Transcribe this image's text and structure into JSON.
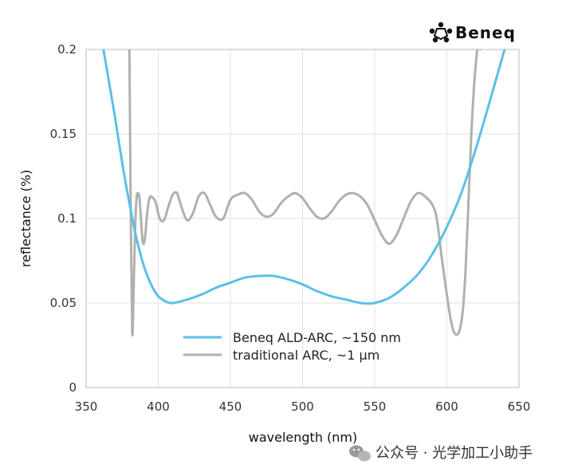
{
  "logo": {
    "text": "Beneq"
  },
  "watermark": {
    "text": "公众号 · 光学加工小助手"
  },
  "chart_data": {
    "type": "line",
    "xlabel": "wavelength (nm)",
    "ylabel": "reflectance (%)",
    "xlim": [
      350,
      650
    ],
    "ylim": [
      0,
      0.2
    ],
    "xticks": [
      350,
      400,
      450,
      500,
      550,
      600,
      650
    ],
    "yticks": [
      0,
      0.05,
      0.1,
      0.15,
      0.2
    ],
    "ytick_labels": [
      "0",
      "0.05",
      "0.1",
      "0.15",
      "0.2"
    ],
    "grid": true,
    "legend_position": "bottom-center",
    "series": [
      {
        "name": "Beneq ALD-ARC, ~150 nm",
        "color": "#5bc0e8",
        "x": [
          362,
          365,
          370,
          375,
          380,
          385,
          390,
          395,
          400,
          405,
          410,
          420,
          430,
          440,
          450,
          460,
          470,
          480,
          490,
          500,
          510,
          520,
          530,
          540,
          545,
          550,
          560,
          570,
          580,
          590,
          600,
          610,
          620,
          630,
          640
        ],
        "y": [
          0.2,
          0.185,
          0.16,
          0.133,
          0.109,
          0.088,
          0.072,
          0.061,
          0.054,
          0.051,
          0.05,
          0.052,
          0.055,
          0.059,
          0.062,
          0.065,
          0.066,
          0.066,
          0.064,
          0.061,
          0.057,
          0.054,
          0.052,
          0.05,
          0.0497,
          0.05,
          0.053,
          0.059,
          0.067,
          0.079,
          0.095,
          0.115,
          0.141,
          0.17,
          0.2
        ]
      },
      {
        "name": "traditional ARC, ~1 μm",
        "color": "#b0b0b0",
        "x": [
          380,
          381,
          382,
          383,
          384,
          385,
          386,
          387,
          388,
          389,
          390,
          391,
          392,
          393,
          394,
          395,
          398,
          401,
          404,
          407,
          410,
          413,
          416,
          420,
          424,
          428,
          432,
          436,
          440,
          445,
          450,
          455,
          460,
          465,
          470,
          475,
          480,
          485,
          490,
          495,
          500,
          505,
          510,
          515,
          520,
          525,
          530,
          535,
          540,
          545,
          550,
          555,
          560,
          565,
          570,
          575,
          580,
          585,
          590,
          593,
          596,
          600,
          604,
          608,
          611,
          613,
          615,
          617,
          619,
          621,
          622,
          623
        ],
        "y": [
          0.2,
          0.1,
          0.032,
          0.06,
          0.095,
          0.112,
          0.115,
          0.112,
          0.1,
          0.088,
          0.085,
          0.09,
          0.1,
          0.108,
          0.112,
          0.113,
          0.11,
          0.1,
          0.099,
          0.107,
          0.114,
          0.115,
          0.107,
          0.099,
          0.103,
          0.113,
          0.115,
          0.108,
          0.101,
          0.1,
          0.111,
          0.114,
          0.115,
          0.111,
          0.104,
          0.101,
          0.103,
          0.109,
          0.113,
          0.115,
          0.112,
          0.106,
          0.101,
          0.1,
          0.104,
          0.11,
          0.114,
          0.115,
          0.113,
          0.108,
          0.099,
          0.09,
          0.085,
          0.09,
          0.1,
          0.11,
          0.115,
          0.113,
          0.108,
          0.1,
          0.08,
          0.055,
          0.035,
          0.032,
          0.045,
          0.07,
          0.11,
          0.15,
          0.18,
          0.2,
          0.21,
          0.2
        ]
      }
    ]
  }
}
